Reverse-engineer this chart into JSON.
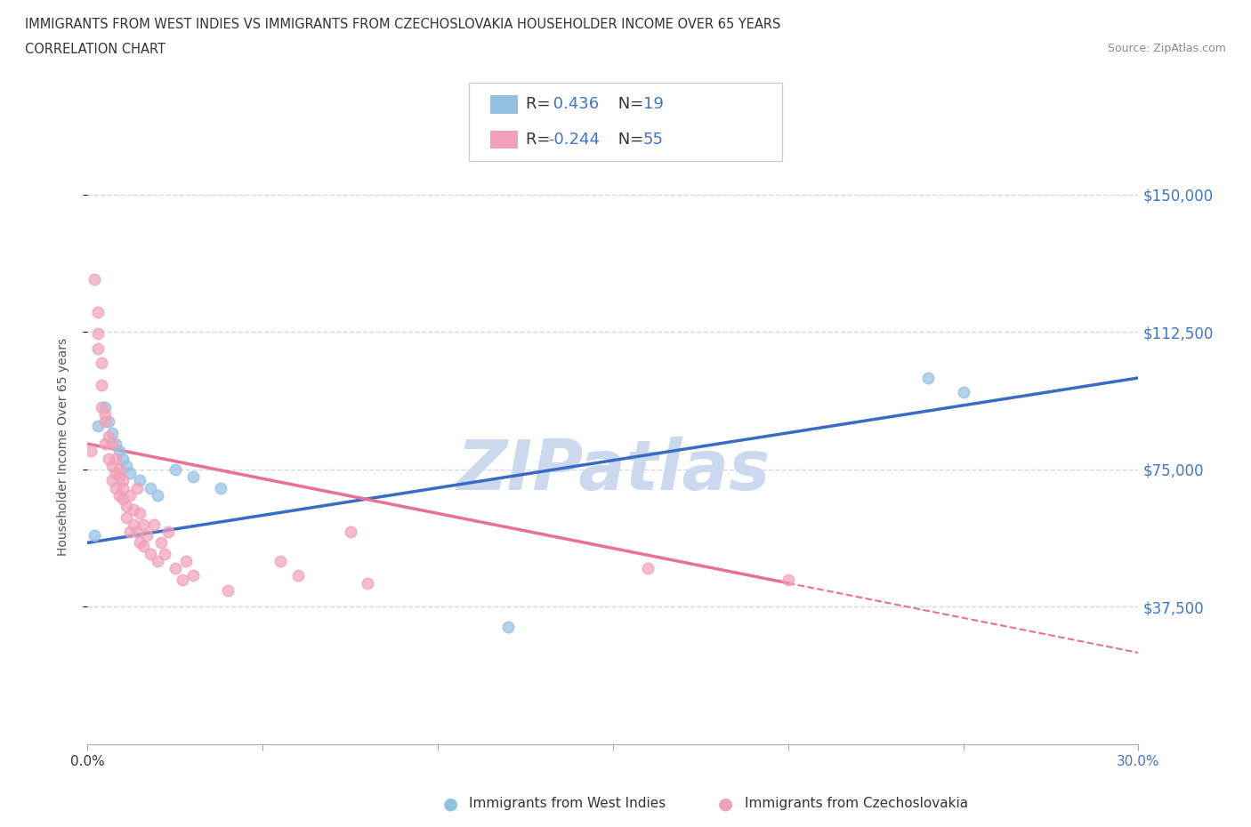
{
  "title_line1": "IMMIGRANTS FROM WEST INDIES VS IMMIGRANTS FROM CZECHOSLOVAKIA HOUSEHOLDER INCOME OVER 65 YEARS",
  "title_line2": "CORRELATION CHART",
  "source_text": "Source: ZipAtlas.com",
  "ylabel": "Householder Income Over 65 years",
  "xlim": [
    0.0,
    0.3
  ],
  "ylim": [
    0,
    162500
  ],
  "yticks": [
    37500,
    75000,
    112500,
    150000
  ],
  "ytick_labels": [
    "$37,500",
    "$75,000",
    "$112,500",
    "$150,000"
  ],
  "xtick_labels_ends": [
    "0.0%",
    "30.0%"
  ],
  "series1_name": "Immigrants from West Indies",
  "series1_color": "#92c0e0",
  "series1_R": 0.436,
  "series1_N": 19,
  "series1_x": [
    0.002,
    0.003,
    0.005,
    0.006,
    0.007,
    0.008,
    0.009,
    0.01,
    0.011,
    0.012,
    0.015,
    0.018,
    0.02,
    0.025,
    0.03,
    0.038,
    0.24,
    0.25,
    0.12
  ],
  "series1_y": [
    57000,
    87000,
    92000,
    88000,
    85000,
    82000,
    80000,
    78000,
    76000,
    74000,
    72000,
    70000,
    68000,
    75000,
    73000,
    70000,
    100000,
    96000,
    32000
  ],
  "series2_name": "Immigrants from Czechoslovakia",
  "series2_color": "#f0a0b8",
  "series2_R": -0.244,
  "series2_N": 55,
  "series2_x": [
    0.001,
    0.002,
    0.003,
    0.003,
    0.003,
    0.004,
    0.004,
    0.004,
    0.005,
    0.005,
    0.005,
    0.006,
    0.006,
    0.007,
    0.007,
    0.007,
    0.008,
    0.008,
    0.008,
    0.009,
    0.009,
    0.009,
    0.01,
    0.01,
    0.01,
    0.011,
    0.011,
    0.012,
    0.012,
    0.013,
    0.013,
    0.014,
    0.014,
    0.015,
    0.015,
    0.016,
    0.016,
    0.017,
    0.018,
    0.019,
    0.02,
    0.021,
    0.022,
    0.023,
    0.025,
    0.027,
    0.028,
    0.03,
    0.04,
    0.055,
    0.06,
    0.08,
    0.16,
    0.2,
    0.075
  ],
  "series2_y": [
    80000,
    127000,
    118000,
    112000,
    108000,
    98000,
    104000,
    92000,
    88000,
    82000,
    90000,
    84000,
    78000,
    82000,
    76000,
    72000,
    78000,
    74000,
    70000,
    73000,
    68000,
    75000,
    72000,
    67000,
    70000,
    65000,
    62000,
    68000,
    58000,
    64000,
    60000,
    58000,
    70000,
    63000,
    55000,
    60000,
    54000,
    57000,
    52000,
    60000,
    50000,
    55000,
    52000,
    58000,
    48000,
    45000,
    50000,
    46000,
    42000,
    50000,
    46000,
    44000,
    48000,
    45000,
    58000
  ],
  "trend1_color": "#3a6bc4",
  "trend2_color": "#e87090",
  "trend2_solid_end": 0.2,
  "watermark_text": "ZIPatlas",
  "watermark_color": "#ccd8ee",
  "background_color": "#ffffff",
  "grid_color": "#d0d8ea",
  "title_fontsize": 11,
  "axis_label_color": "#4472c4",
  "legend_R_color": "#4472c4"
}
